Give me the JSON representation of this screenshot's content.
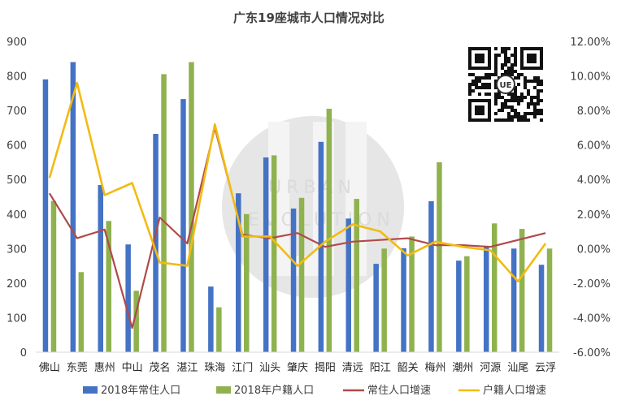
{
  "chart_data": {
    "type": "bar",
    "title": "广东19座城市人口情况对比",
    "categories": [
      "佛山",
      "东莞",
      "惠州",
      "中山",
      "茂名",
      "湛江",
      "珠海",
      "江门",
      "汕头",
      "肇庆",
      "揭阳",
      "清远",
      "阳江",
      "韶关",
      "梅州",
      "潮州",
      "河源",
      "汕尾",
      "云浮"
    ],
    "series": [
      {
        "name": "2018年常住人口",
        "type": "bar",
        "axis": "left",
        "color": "#4472c4",
        "values": [
          790,
          840,
          484,
          312,
          632,
          733,
          190,
          460,
          564,
          416,
          609,
          387,
          256,
          301,
          437,
          265,
          308,
          300,
          253
        ]
      },
      {
        "name": "2018年户籍人口",
        "type": "bar",
        "axis": "left",
        "color": "#8fb24f",
        "values": [
          438,
          232,
          380,
          178,
          805,
          840,
          130,
          400,
          570,
          447,
          705,
          444,
          300,
          335,
          550,
          278,
          373,
          357,
          300
        ]
      },
      {
        "name": "常住人口增速",
        "type": "line",
        "axis": "right",
        "color": "#b04a4a",
        "values": [
          3.2,
          0.6,
          1.1,
          -4.6,
          1.8,
          0.3,
          7.0,
          0.8,
          0.6,
          0.9,
          0.1,
          0.4,
          0.5,
          0.6,
          0.2,
          0.2,
          0.1,
          0.5,
          0.9
        ]
      },
      {
        "name": "户籍人口增速",
        "type": "line",
        "axis": "right",
        "color": "#f2bb12",
        "values": [
          4.1,
          9.6,
          3.1,
          3.8,
          -0.8,
          -1.0,
          7.2,
          0.7,
          0.7,
          -1.0,
          0.4,
          1.4,
          1.0,
          -0.4,
          0.4,
          0.1,
          -0.1,
          -1.9,
          0.3
        ]
      }
    ],
    "ylim": [
      0,
      900
    ],
    "yticks": [
      "0",
      "100",
      "200",
      "300",
      "400",
      "500",
      "600",
      "700",
      "800",
      "900"
    ],
    "y2lim": [
      -6,
      12
    ],
    "y2ticks": [
      "-6.00%",
      "-4.00%",
      "-2.00%",
      "0.00%",
      "2.00%",
      "4.00%",
      "6.00%",
      "8.00%",
      "10.00%",
      "12.00%"
    ],
    "legend_position": "bottom",
    "grid": false
  },
  "watermark": {
    "letters_row1": "URBAN",
    "letters_row2": "EVOLUTION",
    "qr_badge": "UE"
  }
}
